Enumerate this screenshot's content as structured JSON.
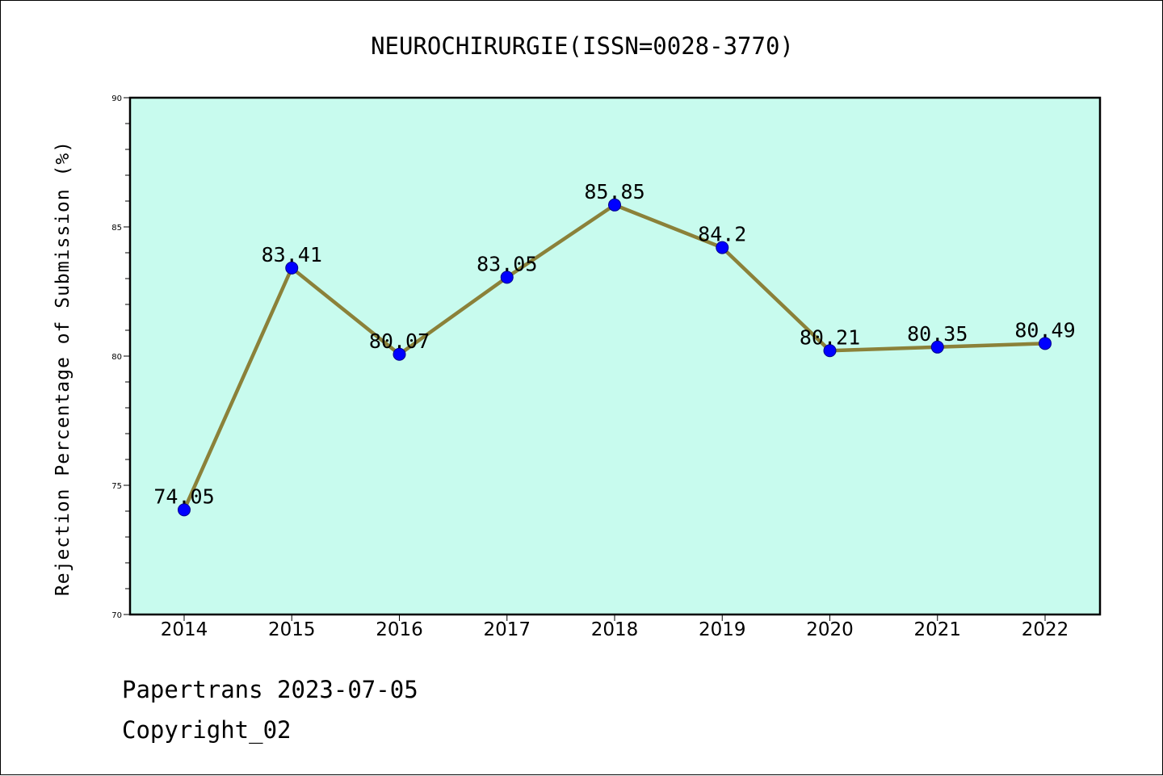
{
  "chart_data": {
    "type": "line",
    "title": "NEUROCHIRURGIE(ISSN=0028-3770)",
    "ylabel": "Rejection Percentage of Submission (%)",
    "xlabel": "",
    "categories": [
      "2014",
      "2015",
      "2016",
      "2017",
      "2018",
      "2019",
      "2020",
      "2021",
      "2022"
    ],
    "series": [
      {
        "values": [
          74.05,
          83.41,
          80.07,
          83.05,
          85.85,
          84.2,
          80.21,
          80.35,
          80.49
        ],
        "labels": [
          "74.05",
          "83.41",
          "80.07",
          "83.05",
          "85.85",
          "84.2",
          "80.21",
          "80.35",
          "80.49"
        ]
      }
    ],
    "ylim": [
      70,
      90
    ],
    "yticks": [
      "70",
      "75",
      "80",
      "85",
      "90"
    ],
    "grid": false,
    "colors": {
      "plot_background": "#c8fbee",
      "line": "#8b8139",
      "marker": "#0000ff"
    }
  },
  "footer": {
    "line1": "Papertrans 2023-07-05",
    "line2": "Copyright_02"
  }
}
